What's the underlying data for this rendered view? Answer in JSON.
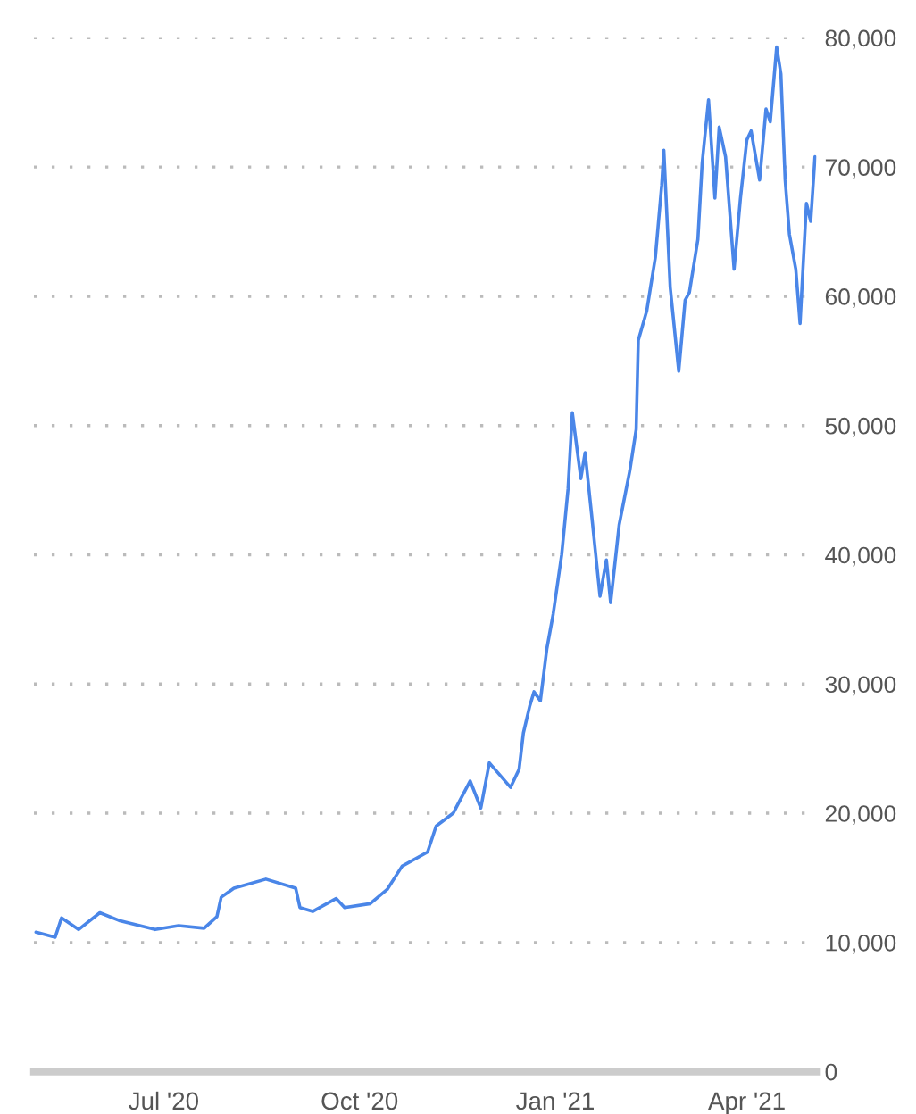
{
  "chart_data": {
    "type": "line",
    "x": [
      "2020-05-02",
      "2020-05-11",
      "2020-05-14",
      "2020-05-22",
      "2020-06-01",
      "2020-06-10",
      "2020-06-27",
      "2020-07-08",
      "2020-07-20",
      "2020-07-26",
      "2020-07-28",
      "2020-08-03",
      "2020-08-18",
      "2020-09-01",
      "2020-09-03",
      "2020-09-09",
      "2020-09-20",
      "2020-09-24",
      "2020-10-06",
      "2020-10-14",
      "2020-10-21",
      "2020-11-02",
      "2020-11-06",
      "2020-11-14",
      "2020-11-22",
      "2020-11-27",
      "2020-12-01",
      "2020-12-11",
      "2020-12-15",
      "2020-12-17",
      "2020-12-20",
      "2020-12-22",
      "2020-12-25",
      "2020-12-28",
      "2020-12-31",
      "2021-01-04",
      "2021-01-07",
      "2021-01-09",
      "2021-01-13",
      "2021-01-15",
      "2021-01-18",
      "2021-01-22",
      "2021-01-25",
      "2021-01-27",
      "2021-01-31",
      "2021-02-05",
      "2021-02-08",
      "2021-02-09",
      "2021-02-13",
      "2021-02-17",
      "2021-02-20",
      "2021-02-21",
      "2021-02-24",
      "2021-02-28",
      "2021-03-03",
      "2021-03-05",
      "2021-03-09",
      "2021-03-11",
      "2021-03-14",
      "2021-03-17",
      "2021-03-19",
      "2021-03-22",
      "2021-03-26",
      "2021-03-29",
      "2021-04-01",
      "2021-04-03",
      "2021-04-07",
      "2021-04-10",
      "2021-04-12",
      "2021-04-15",
      "2021-04-17",
      "2021-04-19",
      "2021-04-21",
      "2021-04-24",
      "2021-04-26",
      "2021-04-29",
      "2021-05-01",
      "2021-05-03"
    ],
    "series": [
      {
        "color": "#4a86e8",
        "values": [
          10800,
          10400,
          11900,
          11000,
          12300,
          11700,
          11000,
          11300,
          11100,
          12000,
          13500,
          14200,
          14900,
          14200,
          12700,
          12400,
          13400,
          12700,
          13000,
          14100,
          15900,
          17000,
          19000,
          20000,
          22500,
          20400,
          23900,
          22000,
          23400,
          26200,
          28300,
          29400,
          28700,
          32700,
          35400,
          40000,
          45100,
          51000,
          45900,
          47900,
          43200,
          36800,
          39600,
          36300,
          42300,
          46500,
          49700,
          56600,
          58900,
          63000,
          68600,
          71300,
          60700,
          54200,
          59700,
          60300,
          64400,
          70300,
          75200,
          67600,
          73100,
          70800,
          62100,
          67600,
          72100,
          72800,
          69000,
          74500,
          73500,
          79300,
          77200,
          69000,
          64800,
          62100,
          57900,
          67200,
          65800,
          70800
        ]
      }
    ],
    "xlim": [
      "2020-05-01",
      "2021-05-04"
    ],
    "xticks": [
      {
        "value": "2020-07-01",
        "label": "Jul '20"
      },
      {
        "value": "2020-10-01",
        "label": "Oct '20"
      },
      {
        "value": "2021-01-01",
        "label": "Jan '21"
      },
      {
        "value": "2021-04-01",
        "label": "Apr '21"
      }
    ],
    "ylim": [
      0,
      80000
    ],
    "yticks": [
      0,
      {
        "value": 10000,
        "label": "10,000"
      },
      {
        "value": 20000,
        "label": "20,000"
      },
      {
        "value": 30000,
        "label": "30,000"
      },
      {
        "value": 40000,
        "label": "40,000"
      },
      {
        "value": 50000,
        "label": "50,000"
      },
      {
        "value": 60000,
        "label": "60,000"
      },
      {
        "value": 70000,
        "label": "70,000"
      },
      {
        "value": 80000,
        "label": "80,000"
      }
    ],
    "grid": "y",
    "legend": false,
    "marker": "none",
    "line_style": "solid"
  }
}
